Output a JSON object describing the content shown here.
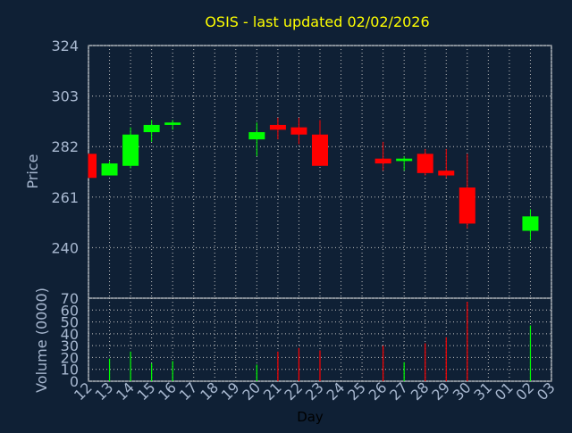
{
  "title": "OSIS - last updated 02/02/2026",
  "colors": {
    "background": "#0f2035",
    "plot_border": "#ffffff",
    "grid": "#c0c0c0",
    "axis_text": "#a8b8d0",
    "title": "#ffff00",
    "up": "#00ff00",
    "down": "#ff0000",
    "xlabel": "#000000"
  },
  "chart_data": [
    {
      "type": "candlestick",
      "ylabel": "Price",
      "ylim": [
        219,
        324
      ],
      "yticks": [
        240,
        261,
        282,
        303,
        324
      ],
      "grid": true,
      "x": [
        "12",
        "13",
        "14",
        "15",
        "16",
        "17",
        "18",
        "19",
        "20",
        "21",
        "22",
        "23",
        "24",
        "25",
        "26",
        "27",
        "28",
        "29",
        "30",
        "31",
        "01",
        "02",
        "03"
      ],
      "candles": [
        {
          "day": "12",
          "open": 279,
          "high": 279,
          "low": 269,
          "close": 269
        },
        {
          "day": "13",
          "open": 270,
          "high": 276,
          "low": 270,
          "close": 275
        },
        {
          "day": "14",
          "open": 274,
          "high": 290,
          "low": 273,
          "close": 287
        },
        {
          "day": "15",
          "open": 288,
          "high": 293,
          "low": 284,
          "close": 291
        },
        {
          "day": "16",
          "open": 291,
          "high": 293,
          "low": 289,
          "close": 292
        },
        {
          "day": "20",
          "open": 285,
          "high": 292,
          "low": 278,
          "close": 288
        },
        {
          "day": "21",
          "open": 291,
          "high": 294,
          "low": 285,
          "close": 289
        },
        {
          "day": "22",
          "open": 290,
          "high": 294,
          "low": 283,
          "close": 287
        },
        {
          "day": "23",
          "open": 287,
          "high": 293,
          "low": 274,
          "close": 274
        },
        {
          "day": "26",
          "open": 277,
          "high": 284,
          "low": 272,
          "close": 275
        },
        {
          "day": "27",
          "open": 276,
          "high": 278,
          "low": 272,
          "close": 277
        },
        {
          "day": "28",
          "open": 279,
          "high": 281,
          "low": 270,
          "close": 271
        },
        {
          "day": "29",
          "open": 272,
          "high": 281,
          "low": 269,
          "close": 270
        },
        {
          "day": "30",
          "open": 265,
          "high": 279,
          "low": 248,
          "close": 250
        },
        {
          "day": "02",
          "open": 247,
          "high": 256,
          "low": 243,
          "close": 253
        }
      ]
    },
    {
      "type": "bar",
      "ylabel": "Volume (0000)",
      "xlabel": "Day",
      "ylim": [
        0,
        70
      ],
      "yticks": [
        0,
        10,
        20,
        30,
        40,
        50,
        60,
        70
      ],
      "grid": true,
      "x": [
        "12",
        "13",
        "14",
        "15",
        "16",
        "17",
        "18",
        "19",
        "20",
        "21",
        "22",
        "23",
        "24",
        "25",
        "26",
        "27",
        "28",
        "29",
        "30",
        "31",
        "01",
        "02",
        "03"
      ],
      "bars": [
        {
          "day": "13",
          "value": 19,
          "color": "up"
        },
        {
          "day": "14",
          "value": 25,
          "color": "up"
        },
        {
          "day": "15",
          "value": 15,
          "color": "up"
        },
        {
          "day": "16",
          "value": 17,
          "color": "up"
        },
        {
          "day": "20",
          "value": 14,
          "color": "up"
        },
        {
          "day": "21",
          "value": 25,
          "color": "down"
        },
        {
          "day": "22",
          "value": 28,
          "color": "down"
        },
        {
          "day": "23",
          "value": 26,
          "color": "down"
        },
        {
          "day": "26",
          "value": 30,
          "color": "down"
        },
        {
          "day": "27",
          "value": 16,
          "color": "up"
        },
        {
          "day": "28",
          "value": 32,
          "color": "down"
        },
        {
          "day": "29",
          "value": 37,
          "color": "down"
        },
        {
          "day": "30",
          "value": 67,
          "color": "down"
        },
        {
          "day": "02",
          "value": 47,
          "color": "up"
        }
      ]
    }
  ]
}
